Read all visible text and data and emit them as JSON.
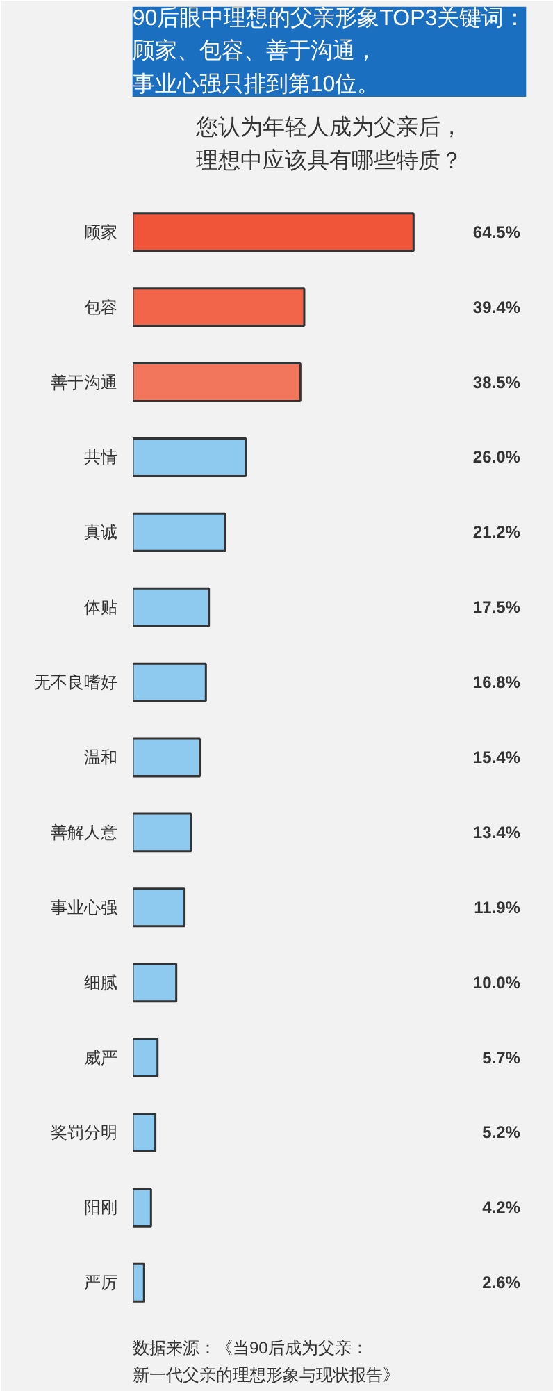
{
  "chart_data": {
    "type": "bar",
    "orientation": "horizontal",
    "title": "90后眼中理想的父亲形象TOP3关键词：顾家、包容、善于沟通，事业心强只排到第10位。",
    "subtitle": "您认为年轻人成为父亲后，理想中应该具有哪些特质？",
    "categories": [
      "顾家",
      "包容",
      "善于沟通",
      "共情",
      "真诚",
      "体贴",
      "无不良嗜好",
      "温和",
      "善解人意",
      "事业心强",
      "细腻",
      "威严",
      "奖罚分明",
      "阳刚",
      "严厉"
    ],
    "values": [
      64.5,
      39.4,
      38.5,
      26.0,
      21.2,
      17.5,
      16.8,
      15.4,
      13.4,
      11.9,
      10.0,
      5.7,
      5.2,
      4.2,
      2.6
    ],
    "value_labels": [
      "64.5%",
      "39.4%",
      "38.5%",
      "26.0%",
      "21.2%",
      "17.5%",
      "16.8%",
      "15.4%",
      "13.4%",
      "11.9%",
      "10.0%",
      "5.7%",
      "5.2%",
      "4.2%",
      "2.6%"
    ],
    "colors": [
      "#f0553a",
      "#f2654a",
      "#f2765c",
      "#8ec9f0",
      "#8ec9f0",
      "#8ec9f0",
      "#8ec9f0",
      "#8ec9f0",
      "#8ec9f0",
      "#8ec9f0",
      "#8ec9f0",
      "#8ec9f0",
      "#8ec9f0",
      "#8ec9f0",
      "#8ec9f0"
    ],
    "annotations": [
      "数据来源：《当90后成为父亲：新一代父亲的理想形象与现状报告》"
    ],
    "grid": false
  }
}
